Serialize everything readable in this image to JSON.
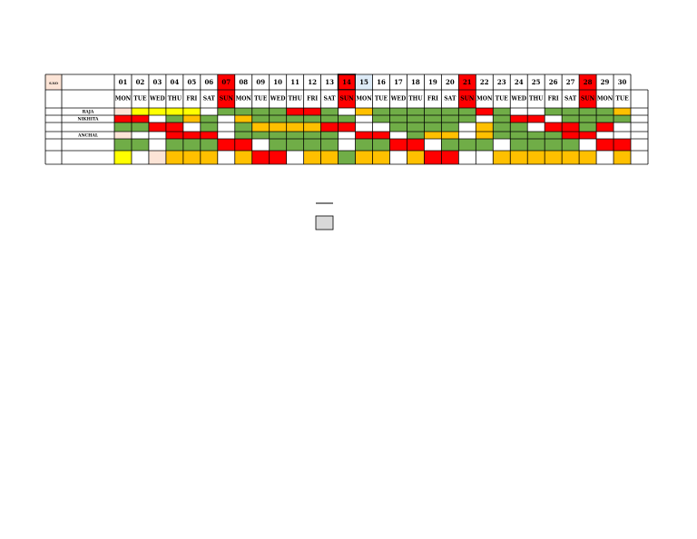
{
  "table": {
    "corner": "S.NO",
    "dates": [
      "01",
      "02",
      "03",
      "04",
      "05",
      "06",
      "07",
      "08",
      "09",
      "10",
      "11",
      "12",
      "13",
      "14",
      "15",
      "16",
      "17",
      "18",
      "19",
      "20",
      "21",
      "22",
      "23",
      "24",
      "25",
      "26",
      "27",
      "28",
      "29",
      "30"
    ],
    "days": [
      "MON",
      "TUE",
      "WED",
      "THU",
      "FRI",
      "SAT",
      "SUN",
      "MON",
      "TUE",
      "WED",
      "THU",
      "FRI",
      "SAT",
      "SUN",
      "MON",
      "TUE",
      "WED",
      "THU",
      "FRI",
      "SAT",
      "SUN",
      "MON",
      "TUE",
      "WED",
      "THU",
      "FRI",
      "SAT",
      "SUN",
      "MON",
      "TUE"
    ],
    "rows": [
      {
        "name": "RAJA"
      },
      {
        "name": "NIKHITA"
      },
      {},
      {
        "name": "ANCHAL"
      },
      {},
      {}
    ]
  }
}
